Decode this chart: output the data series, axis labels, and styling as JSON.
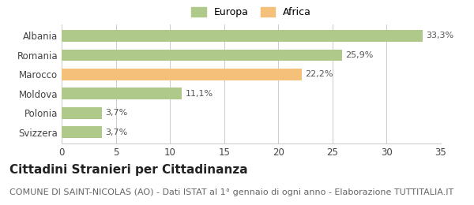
{
  "categories": [
    "Albania",
    "Romania",
    "Marocco",
    "Moldova",
    "Polonia",
    "Svizzera"
  ],
  "values": [
    33.3,
    25.9,
    22.2,
    11.1,
    3.7,
    3.7
  ],
  "colors": [
    "#aec98a",
    "#aec98a",
    "#f5c07a",
    "#aec98a",
    "#aec98a",
    "#aec98a"
  ],
  "labels": [
    "33,3%",
    "25,9%",
    "22,2%",
    "11,1%",
    "3,7%",
    "3,7%"
  ],
  "legend": [
    {
      "label": "Europa",
      "color": "#aec98a"
    },
    {
      "label": "Africa",
      "color": "#f5c07a"
    }
  ],
  "xlim": [
    0,
    35
  ],
  "xticks": [
    0,
    5,
    10,
    15,
    20,
    25,
    30,
    35
  ],
  "title": "Cittadini Stranieri per Cittadinanza",
  "subtitle": "COMUNE DI SAINT-NICOLAS (AO) - Dati ISTAT al 1° gennaio di ogni anno - Elaborazione TUTTITALIA.IT",
  "background_color": "#ffffff",
  "bar_edge_color": "none",
  "grid_color": "#cccccc",
  "title_fontsize": 11,
  "subtitle_fontsize": 8,
  "label_fontsize": 8,
  "tick_fontsize": 8.5,
  "legend_fontsize": 9
}
